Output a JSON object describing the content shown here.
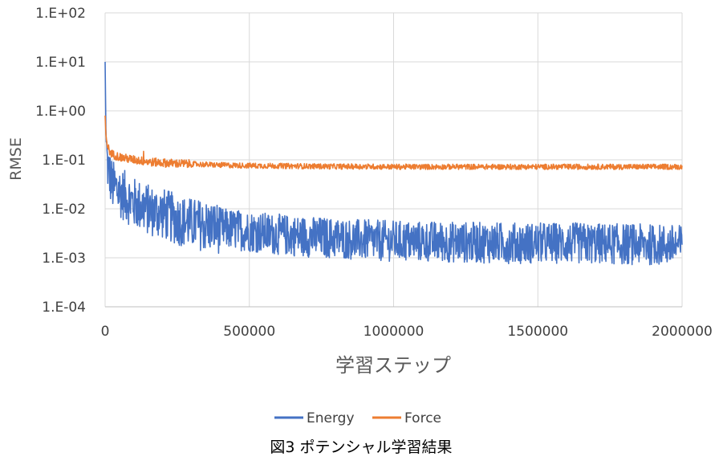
{
  "chart_data": {
    "type": "line",
    "title": "",
    "caption": "図3 ポテンシャル学習結果",
    "xlabel": "学習ステップ",
    "ylabel": "RMSE",
    "xlim": [
      0,
      2000000
    ],
    "ylim": [
      0.0001,
      100
    ],
    "yscale": "log",
    "grid": true,
    "legend_position": "bottom",
    "x_ticks": [
      0,
      500000,
      1000000,
      1500000,
      2000000
    ],
    "x_tick_labels": [
      "0",
      "500000",
      "1000000",
      "1500000",
      "2000000"
    ],
    "y_ticks": [
      0.0001,
      0.001,
      0.01,
      0.1,
      1,
      10,
      100
    ],
    "y_tick_labels": [
      "1.E-04",
      "1.E-03",
      "1.E-02",
      "1.E-01",
      "1.E+00",
      "1.E+01",
      "1.E+02"
    ],
    "series": [
      {
        "name": "Energy",
        "color": "#4472C4",
        "x": [
          0,
          3000,
          8000,
          15000,
          25000,
          40000,
          60000,
          80000,
          100000,
          130000,
          160000,
          200000,
          250000,
          300000,
          400000,
          500000,
          600000,
          700000,
          800000,
          900000,
          1000000,
          1200000,
          1400000,
          1600000,
          1800000,
          2000000
        ],
        "y": [
          10,
          0.3,
          0.08,
          0.05,
          0.03,
          0.025,
          0.02,
          0.016,
          0.013,
          0.011,
          0.009,
          0.008,
          0.006,
          0.005,
          0.004,
          0.0035,
          0.003,
          0.0027,
          0.0025,
          0.0023,
          0.0022,
          0.0021,
          0.002,
          0.002,
          0.0019,
          0.0018
        ]
      },
      {
        "name": "Force",
        "color": "#ED7D31",
        "x": [
          0,
          3000,
          8000,
          15000,
          25000,
          40000,
          60000,
          80000,
          100000,
          130000,
          160000,
          200000,
          250000,
          300000,
          400000,
          500000,
          600000,
          700000,
          800000,
          900000,
          1000000,
          1200000,
          1400000,
          1600000,
          1800000,
          2000000
        ],
        "y": [
          0.8,
          0.3,
          0.2,
          0.15,
          0.13,
          0.12,
          0.11,
          0.105,
          0.1,
          0.095,
          0.09,
          0.087,
          0.084,
          0.082,
          0.078,
          0.076,
          0.075,
          0.074,
          0.073,
          0.073,
          0.072,
          0.072,
          0.072,
          0.072,
          0.072,
          0.072
        ]
      }
    ]
  }
}
